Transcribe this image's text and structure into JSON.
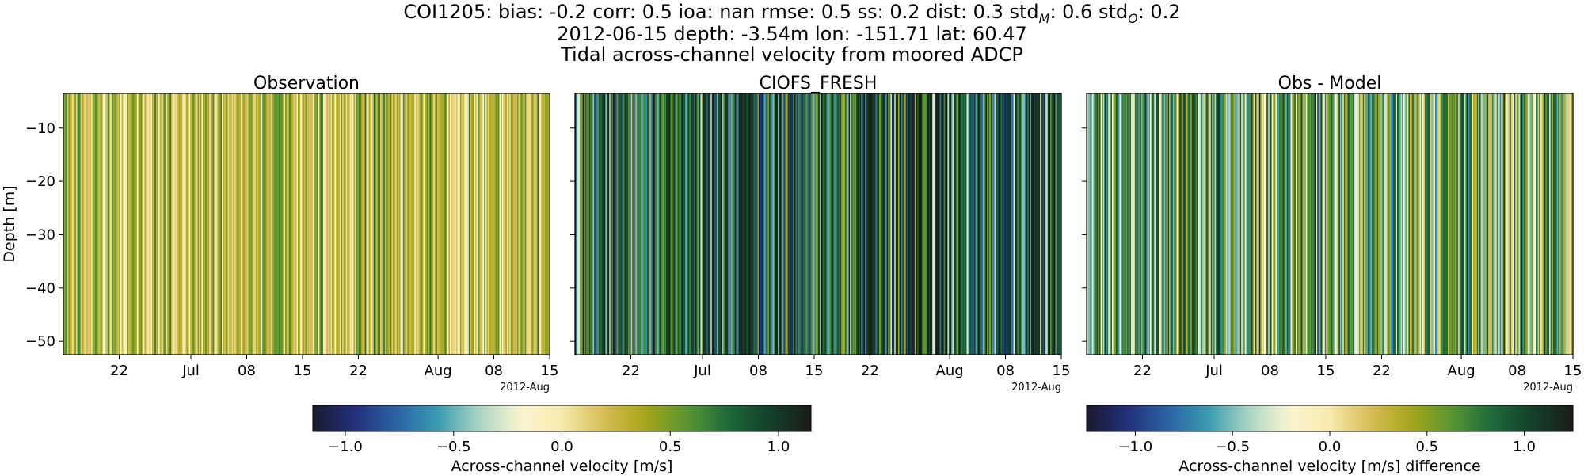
{
  "title": {
    "line1_prefix": "COI1205: bias: -0.2  corr: 0.5  ioa: nan  rmse: 0.5  ss: 0.2  dist: 0.3  std",
    "stdM_sub": "M",
    "line1_mid": ": 0.6  std",
    "stdO_sub": "O",
    "line1_suffix": ": 0.2",
    "line2": "2012-06-15 depth: -3.54m lon: -151.71 lat: 60.47",
    "line3": "Tidal across-channel velocity from moored ADCP"
  },
  "colors": {
    "colormap": [
      "#1a1a2e",
      "#222f7a",
      "#2a62a6",
      "#3a9bb0",
      "#a9d6c4",
      "#fcf5d2",
      "#f6ebac",
      "#d8bd56",
      "#a7a618",
      "#5a9632",
      "#1b6a3c",
      "#14402a",
      "#1a1c18"
    ],
    "background": "#ffffff"
  },
  "chart_data": [
    {
      "type": "heatmap",
      "title": "Observation",
      "ylabel": "Depth [m]",
      "y_ticks": [
        -10,
        -20,
        -30,
        -40,
        -50
      ],
      "y_tick_labels": [
        "−10",
        "−20",
        "−30",
        "−40",
        "−50"
      ],
      "ylim": [
        -52.5,
        -3.5
      ],
      "x_ticks": [
        "2012-06-22",
        "2012-07-01",
        "2012-07-08",
        "2012-07-15",
        "2012-07-22",
        "2012-08-01",
        "2012-08-08",
        "2012-08-15"
      ],
      "x_tick_labels": [
        "22",
        "Jul",
        "08",
        "15",
        "22",
        "Aug",
        "08",
        "15"
      ],
      "xlim": [
        "2012-06-15",
        "2012-08-15"
      ],
      "x_offset_label": "2012-Aug",
      "value_character": "mostly weak positive across-channel velocity (pale yellow), with occasional stronger positive bands",
      "typical_values": [
        0.3,
        0.1,
        0.5,
        0.2,
        -0.1,
        0.4,
        0.6,
        0.25,
        0.0,
        0.35
      ],
      "clim": [
        -1.15,
        1.15
      ]
    },
    {
      "type": "heatmap",
      "title": "CIOFS_FRESH",
      "y_ticks": [
        -10,
        -20,
        -30,
        -40,
        -50
      ],
      "ylim": [
        -52.5,
        -3.5
      ],
      "x_ticks": [
        "2012-06-22",
        "2012-07-01",
        "2012-07-08",
        "2012-07-15",
        "2012-07-22",
        "2012-08-01",
        "2012-08-08",
        "2012-08-15"
      ],
      "x_tick_labels": [
        "22",
        "Jul",
        "08",
        "15",
        "22",
        "Aug",
        "08",
        "15"
      ],
      "xlim": [
        "2012-06-15",
        "2012-08-15"
      ],
      "x_offset_label": "2012-Aug",
      "value_character": "strong alternating velocity bands, mostly strong positive (dark green) with strong negative (blue) bands",
      "typical_values": [
        1.0,
        0.8,
        -0.6,
        1.1,
        0.7,
        -0.9,
        0.9,
        0.5,
        -0.4,
        1.05
      ],
      "clim": [
        -1.15,
        1.15
      ]
    },
    {
      "type": "heatmap",
      "title": "Obs - Model",
      "y_ticks": [
        -10,
        -20,
        -30,
        -40,
        -50
      ],
      "ylim": [
        -52.5,
        -3.5
      ],
      "x_ticks": [
        "2012-06-22",
        "2012-07-01",
        "2012-07-08",
        "2012-07-15",
        "2012-07-22",
        "2012-08-01",
        "2012-08-08",
        "2012-08-15"
      ],
      "x_tick_labels": [
        "22",
        "Jul",
        "08",
        "15",
        "22",
        "Aug",
        "08",
        "15"
      ],
      "xlim": [
        "2012-06-15",
        "2012-08-15"
      ],
      "x_offset_label": "2012-Aug",
      "value_character": "mixed positive and negative differences, dominated by positive (green) bands",
      "typical_values": [
        0.7,
        -0.4,
        0.9,
        0.3,
        -0.6,
        1.0,
        0.5,
        -0.2,
        0.8,
        0.1
      ],
      "clim": [
        -1.25,
        1.25
      ]
    }
  ],
  "colorbars": [
    {
      "label": "Across-channel velocity [m/s]",
      "range": [
        -1.15,
        1.15
      ],
      "ticks": [
        -1.0,
        -0.5,
        0.0,
        0.5,
        1.0
      ],
      "tick_labels": [
        "−1.0",
        "−0.5",
        "0.0",
        "0.5",
        "1.0"
      ]
    },
    {
      "label": "Across-channel velocity [m/s] difference",
      "range": [
        -1.25,
        1.25
      ],
      "ticks": [
        -1.0,
        -0.5,
        0.0,
        0.5,
        1.0
      ],
      "tick_labels": [
        "−1.0",
        "−0.5",
        "0.0",
        "0.5",
        "1.0"
      ]
    }
  ]
}
